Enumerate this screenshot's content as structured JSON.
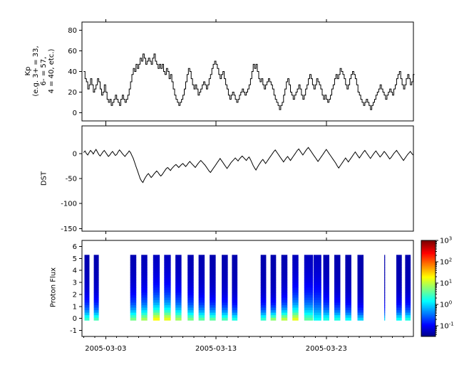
{
  "figure": {
    "bg": "#ffffff",
    "frame_color": "#000000",
    "line_color": "#000000"
  },
  "x_axis": {
    "start_day_offset": -0.15,
    "end_day_offset": 29.9,
    "ticks": [
      {
        "day": 2,
        "label": "2005-03-03"
      },
      {
        "day": 12,
        "label": "2005-03-13"
      },
      {
        "day": 22,
        "label": "2005-03-23"
      }
    ]
  },
  "chart_data": [
    {
      "type": "line",
      "subtype": "step",
      "name": "Kp index",
      "ylabel_lines": [
        "Kp",
        "(e.g. 3+ = 33,",
        "6- = 57,",
        "4 = 40, etc.)"
      ],
      "ylim": [
        -8,
        88
      ],
      "yticks": [
        80,
        60,
        40,
        20,
        0
      ],
      "points_per_day": 8,
      "values": [
        40,
        33,
        30,
        23,
        27,
        33,
        27,
        20,
        23,
        27,
        33,
        30,
        23,
        17,
        20,
        27,
        20,
        13,
        10,
        13,
        7,
        10,
        13,
        17,
        13,
        10,
        7,
        13,
        17,
        13,
        10,
        13,
        17,
        23,
        30,
        37,
        43,
        40,
        47,
        43,
        47,
        53,
        50,
        57,
        53,
        47,
        50,
        53,
        50,
        47,
        53,
        57,
        50,
        47,
        43,
        47,
        43,
        47,
        40,
        37,
        43,
        40,
        33,
        37,
        30,
        23,
        17,
        13,
        10,
        7,
        10,
        13,
        17,
        23,
        30,
        37,
        43,
        40,
        33,
        27,
        23,
        27,
        23,
        17,
        20,
        23,
        27,
        30,
        27,
        23,
        27,
        33,
        37,
        43,
        47,
        50,
        47,
        43,
        37,
        33,
        37,
        40,
        33,
        27,
        23,
        17,
        13,
        17,
        20,
        17,
        13,
        10,
        13,
        17,
        20,
        23,
        20,
        17,
        20,
        23,
        27,
        33,
        40,
        47,
        43,
        47,
        40,
        33,
        30,
        33,
        27,
        23,
        27,
        30,
        33,
        30,
        27,
        23,
        17,
        13,
        10,
        7,
        3,
        7,
        10,
        17,
        23,
        30,
        33,
        27,
        20,
        17,
        13,
        17,
        20,
        23,
        27,
        23,
        17,
        13,
        17,
        23,
        27,
        33,
        37,
        33,
        27,
        23,
        27,
        33,
        30,
        27,
        23,
        17,
        13,
        17,
        13,
        10,
        13,
        17,
        23,
        27,
        33,
        37,
        33,
        37,
        43,
        40,
        37,
        33,
        27,
        23,
        27,
        33,
        37,
        40,
        37,
        33,
        27,
        20,
        17,
        13,
        10,
        7,
        10,
        13,
        10,
        7,
        3,
        7,
        10,
        13,
        17,
        20,
        23,
        27,
        23,
        20,
        17,
        13,
        17,
        20,
        23,
        20,
        17,
        23,
        27,
        33,
        37,
        40,
        33,
        27,
        23,
        27,
        33,
        37,
        33,
        27,
        30,
        37
      ]
    },
    {
      "type": "line",
      "name": "DST",
      "ylabel": "DST",
      "ylim": [
        -155,
        55
      ],
      "yticks": [
        0,
        -50,
        -100,
        -150
      ],
      "points_per_day": 8,
      "values": [
        2,
        5,
        0,
        -3,
        2,
        6,
        3,
        -1,
        4,
        8,
        3,
        -2,
        -5,
        -1,
        3,
        6,
        2,
        -2,
        -6,
        -3,
        1,
        4,
        0,
        -4,
        -2,
        3,
        7,
        4,
        0,
        -3,
        -6,
        -2,
        1,
        5,
        2,
        -4,
        -10,
        -18,
        -26,
        -34,
        -42,
        -50,
        -55,
        -58,
        -52,
        -47,
        -43,
        -40,
        -44,
        -48,
        -45,
        -41,
        -38,
        -35,
        -38,
        -42,
        -45,
        -42,
        -38,
        -34,
        -30,
        -28,
        -31,
        -34,
        -30,
        -27,
        -24,
        -22,
        -25,
        -28,
        -25,
        -22,
        -20,
        -23,
        -26,
        -23,
        -19,
        -16,
        -19,
        -22,
        -25,
        -28,
        -24,
        -20,
        -17,
        -14,
        -17,
        -20,
        -23,
        -27,
        -31,
        -35,
        -38,
        -34,
        -30,
        -26,
        -22,
        -18,
        -14,
        -10,
        -14,
        -18,
        -22,
        -26,
        -30,
        -26,
        -22,
        -18,
        -15,
        -12,
        -9,
        -12,
        -15,
        -11,
        -8,
        -5,
        -8,
        -11,
        -14,
        -10,
        -7,
        -12,
        -18,
        -24,
        -29,
        -33,
        -28,
        -23,
        -19,
        -15,
        -12,
        -16,
        -20,
        -16,
        -12,
        -8,
        -4,
        0,
        4,
        7,
        3,
        -1,
        -5,
        -9,
        -13,
        -17,
        -13,
        -9,
        -6,
        -10,
        -14,
        -10,
        -6,
        -2,
        2,
        6,
        9,
        5,
        1,
        -3,
        1,
        5,
        9,
        12,
        8,
        4,
        0,
        -4,
        -8,
        -12,
        -16,
        -12,
        -8,
        -4,
        0,
        4,
        8,
        4,
        0,
        -4,
        -8,
        -12,
        -16,
        -20,
        -25,
        -29,
        -25,
        -21,
        -17,
        -13,
        -9,
        -13,
        -17,
        -13,
        -9,
        -5,
        -1,
        3,
        -1,
        -5,
        -9,
        -5,
        -1,
        3,
        6,
        2,
        -2,
        -6,
        -10,
        -6,
        -2,
        2,
        5,
        1,
        -3,
        -7,
        -4,
        0,
        4,
        1,
        -3,
        -7,
        -11,
        -8,
        -4,
        0,
        3,
        6,
        2,
        -2,
        -6,
        -10,
        -14,
        -10,
        -6,
        -2,
        1,
        4,
        0,
        -3
      ]
    },
    {
      "type": "heatmap",
      "name": "Proton Flux spectrogram",
      "ylabel": "Proton Flux",
      "ylim": [
        -1.5,
        6.5
      ],
      "yticks": [
        6,
        5,
        4,
        3,
        2,
        1,
        0,
        -1
      ],
      "bar_y_bottom": -0.15,
      "bar_y_top": 5.3,
      "log_flux_min": -1.5,
      "log_flux_max": 3,
      "background_log_flux": -1.3,
      "columns": [
        {
          "day": 0.3,
          "w": 0.45,
          "f0": 0.4,
          "h": 1.1
        },
        {
          "day": 1.15,
          "w": 0.45,
          "f0": 0.5,
          "h": 1.0
        },
        {
          "day": 4.5,
          "w": 0.55,
          "f0": 0.7,
          "h": 1.2
        },
        {
          "day": 5.5,
          "w": 0.55,
          "f0": 0.9,
          "h": 1.3
        },
        {
          "day": 6.6,
          "w": 0.6,
          "f0": 1.3,
          "h": 1.5
        },
        {
          "day": 7.6,
          "w": 0.6,
          "f0": 1.2,
          "h": 1.5
        },
        {
          "day": 8.6,
          "w": 0.55,
          "f0": 0.9,
          "h": 1.3
        },
        {
          "day": 9.7,
          "w": 0.55,
          "f0": 0.7,
          "h": 1.2
        },
        {
          "day": 10.7,
          "w": 0.55,
          "f0": 0.6,
          "h": 1.1
        },
        {
          "day": 11.7,
          "w": 0.55,
          "f0": 0.6,
          "h": 1.0
        },
        {
          "day": 12.8,
          "w": 0.55,
          "f0": 0.5,
          "h": 1.0
        },
        {
          "day": 13.7,
          "w": 0.5,
          "f0": 0.3,
          "h": 0.9
        },
        {
          "day": 16.3,
          "w": 0.5,
          "f0": 0.4,
          "h": 0.9
        },
        {
          "day": 17.2,
          "w": 0.5,
          "f0": 0.8,
          "h": 0.8
        },
        {
          "day": 18.2,
          "w": 0.55,
          "f0": 1.0,
          "h": 1.0
        },
        {
          "day": 19.2,
          "w": 0.55,
          "f0": 1.2,
          "h": 1.4
        },
        {
          "day": 20.4,
          "w": 0.8,
          "f0": 0.6,
          "h": 1.6
        },
        {
          "day": 21.2,
          "w": 0.7,
          "f0": 0.2,
          "h": 1.8
        },
        {
          "day": 22.0,
          "w": 0.55,
          "f0": 0.3,
          "h": 1.2
        },
        {
          "day": 23.0,
          "w": 0.55,
          "f0": 0.3,
          "h": 1.0
        },
        {
          "day": 24.0,
          "w": 0.55,
          "f0": 0.2,
          "h": 0.9
        },
        {
          "day": 25.1,
          "w": 0.55,
          "f0": 0.0,
          "h": 0.8
        },
        {
          "day": 27.3,
          "w": 0.08,
          "f0": 0.0,
          "h": 0.8
        },
        {
          "day": 28.6,
          "w": 0.5,
          "f0": 0.2,
          "h": 0.9
        },
        {
          "day": 29.4,
          "w": 0.5,
          "f0": 0.3,
          "h": 0.9
        }
      ],
      "colorbar": {
        "tick_exponents": [
          3,
          2,
          1,
          0,
          -1
        ],
        "colormap": "jet"
      }
    }
  ]
}
